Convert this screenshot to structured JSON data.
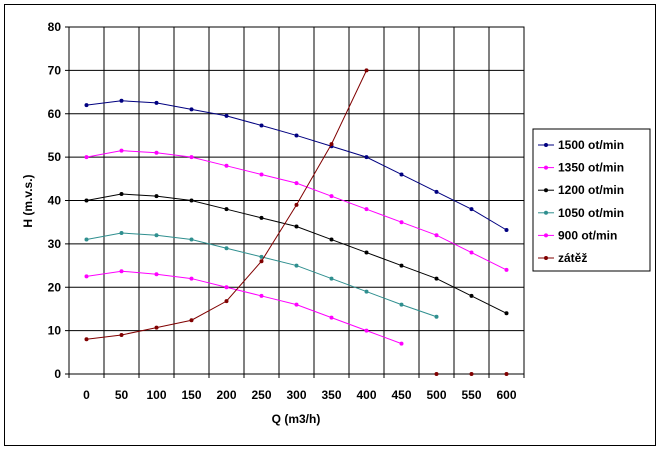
{
  "chart_data": {
    "type": "line",
    "xlabel": "Q (m3/h)",
    "ylabel": "H (m.v.s.)",
    "xlim": [
      0,
      600
    ],
    "ylim": [
      0,
      80
    ],
    "x_ticks": [
      "0",
      "50",
      "100",
      "150",
      "200",
      "250",
      "300",
      "350",
      "400",
      "450",
      "500",
      "550",
      "600"
    ],
    "y_ticks": [
      "0",
      "10",
      "20",
      "30",
      "40",
      "50",
      "60",
      "70",
      "80"
    ],
    "grid": true,
    "legend_position": "right",
    "series": [
      {
        "name": "1500 ot/min",
        "color": "#000080",
        "x": [
          0,
          50,
          100,
          150,
          200,
          250,
          300,
          350,
          400,
          450,
          500,
          550,
          600
        ],
        "y": [
          62,
          63,
          62.5,
          61,
          59.5,
          57.3,
          55,
          52.5,
          50,
          46,
          42,
          38,
          33.2
        ]
      },
      {
        "name": "1350 ot/min",
        "color": "#ff00ff",
        "x": [
          0,
          50,
          100,
          150,
          200,
          250,
          300,
          350,
          400,
          450,
          500,
          550,
          600
        ],
        "y": [
          50,
          51.5,
          51,
          50,
          48,
          46,
          44,
          41,
          38,
          35,
          32,
          28,
          24
        ]
      },
      {
        "name": "1200 ot/min",
        "color": "#000000",
        "x": [
          0,
          50,
          100,
          150,
          200,
          250,
          300,
          350,
          400,
          450,
          500,
          550,
          600
        ],
        "y": [
          40,
          41.5,
          41,
          40,
          38,
          36,
          34,
          31,
          28,
          25,
          22,
          18,
          14
        ]
      },
      {
        "name": "1050 ot/min",
        "color": "#2f8f8f",
        "x": [
          0,
          50,
          100,
          150,
          200,
          250,
          300,
          350,
          400,
          450,
          500
        ],
        "y": [
          31,
          32.5,
          32,
          31,
          29,
          27,
          25,
          22,
          19,
          16,
          13.2
        ]
      },
      {
        "name": "900 ot/min",
        "color": "#ff00ff",
        "x": [
          0,
          50,
          100,
          150,
          200,
          250,
          300,
          350,
          400,
          450
        ],
        "y": [
          22.5,
          23.7,
          23,
          22,
          20,
          18,
          16,
          13,
          10,
          7
        ]
      },
      {
        "name": "zátěž",
        "color": "#800000",
        "x": [
          0,
          50,
          100,
          150,
          200,
          250,
          300,
          350,
          400
        ],
        "y": [
          8,
          9,
          10.7,
          12.4,
          16.8,
          26,
          39,
          53,
          70
        ],
        "extra_points": {
          "x": [
            500,
            550,
            600
          ],
          "y": [
            0,
            0,
            0
          ]
        }
      }
    ]
  }
}
